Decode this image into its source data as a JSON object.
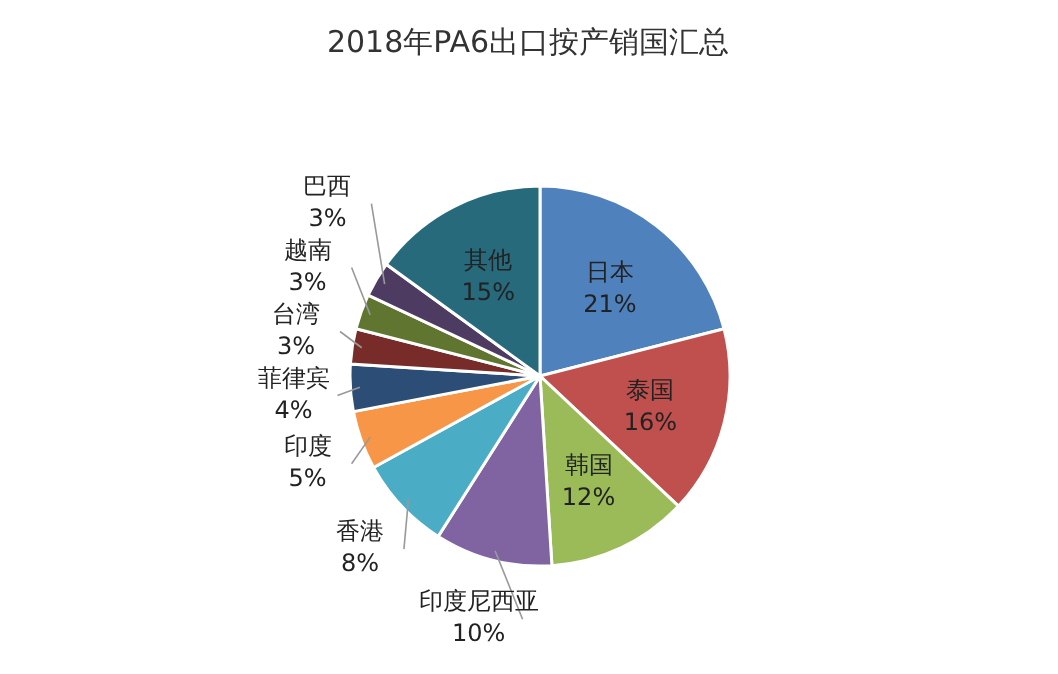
{
  "chart_data": {
    "type": "pie",
    "title": "2018年PA6出口按产销国汇总",
    "categories": [
      "日本",
      "泰国",
      "韩国",
      "印度尼西亚",
      "香港",
      "印度",
      "菲律宾",
      "台湾",
      "越南",
      "巴西",
      "其他"
    ],
    "values": [
      21,
      16,
      12,
      10,
      8,
      5,
      4,
      3,
      3,
      3,
      15
    ],
    "value_labels": [
      "21%",
      "16%",
      "12%",
      "10%",
      "8%",
      "5%",
      "4%",
      "3%",
      "3%",
      "3%",
      "15%"
    ],
    "colors": [
      "#4f81bd",
      "#c0504d",
      "#9bbb59",
      "#8064a2",
      "#4bacc6",
      "#f79646",
      "#2c4d75",
      "#772c2a",
      "#5f7530",
      "#4d3b62",
      "#276a7c"
    ]
  }
}
